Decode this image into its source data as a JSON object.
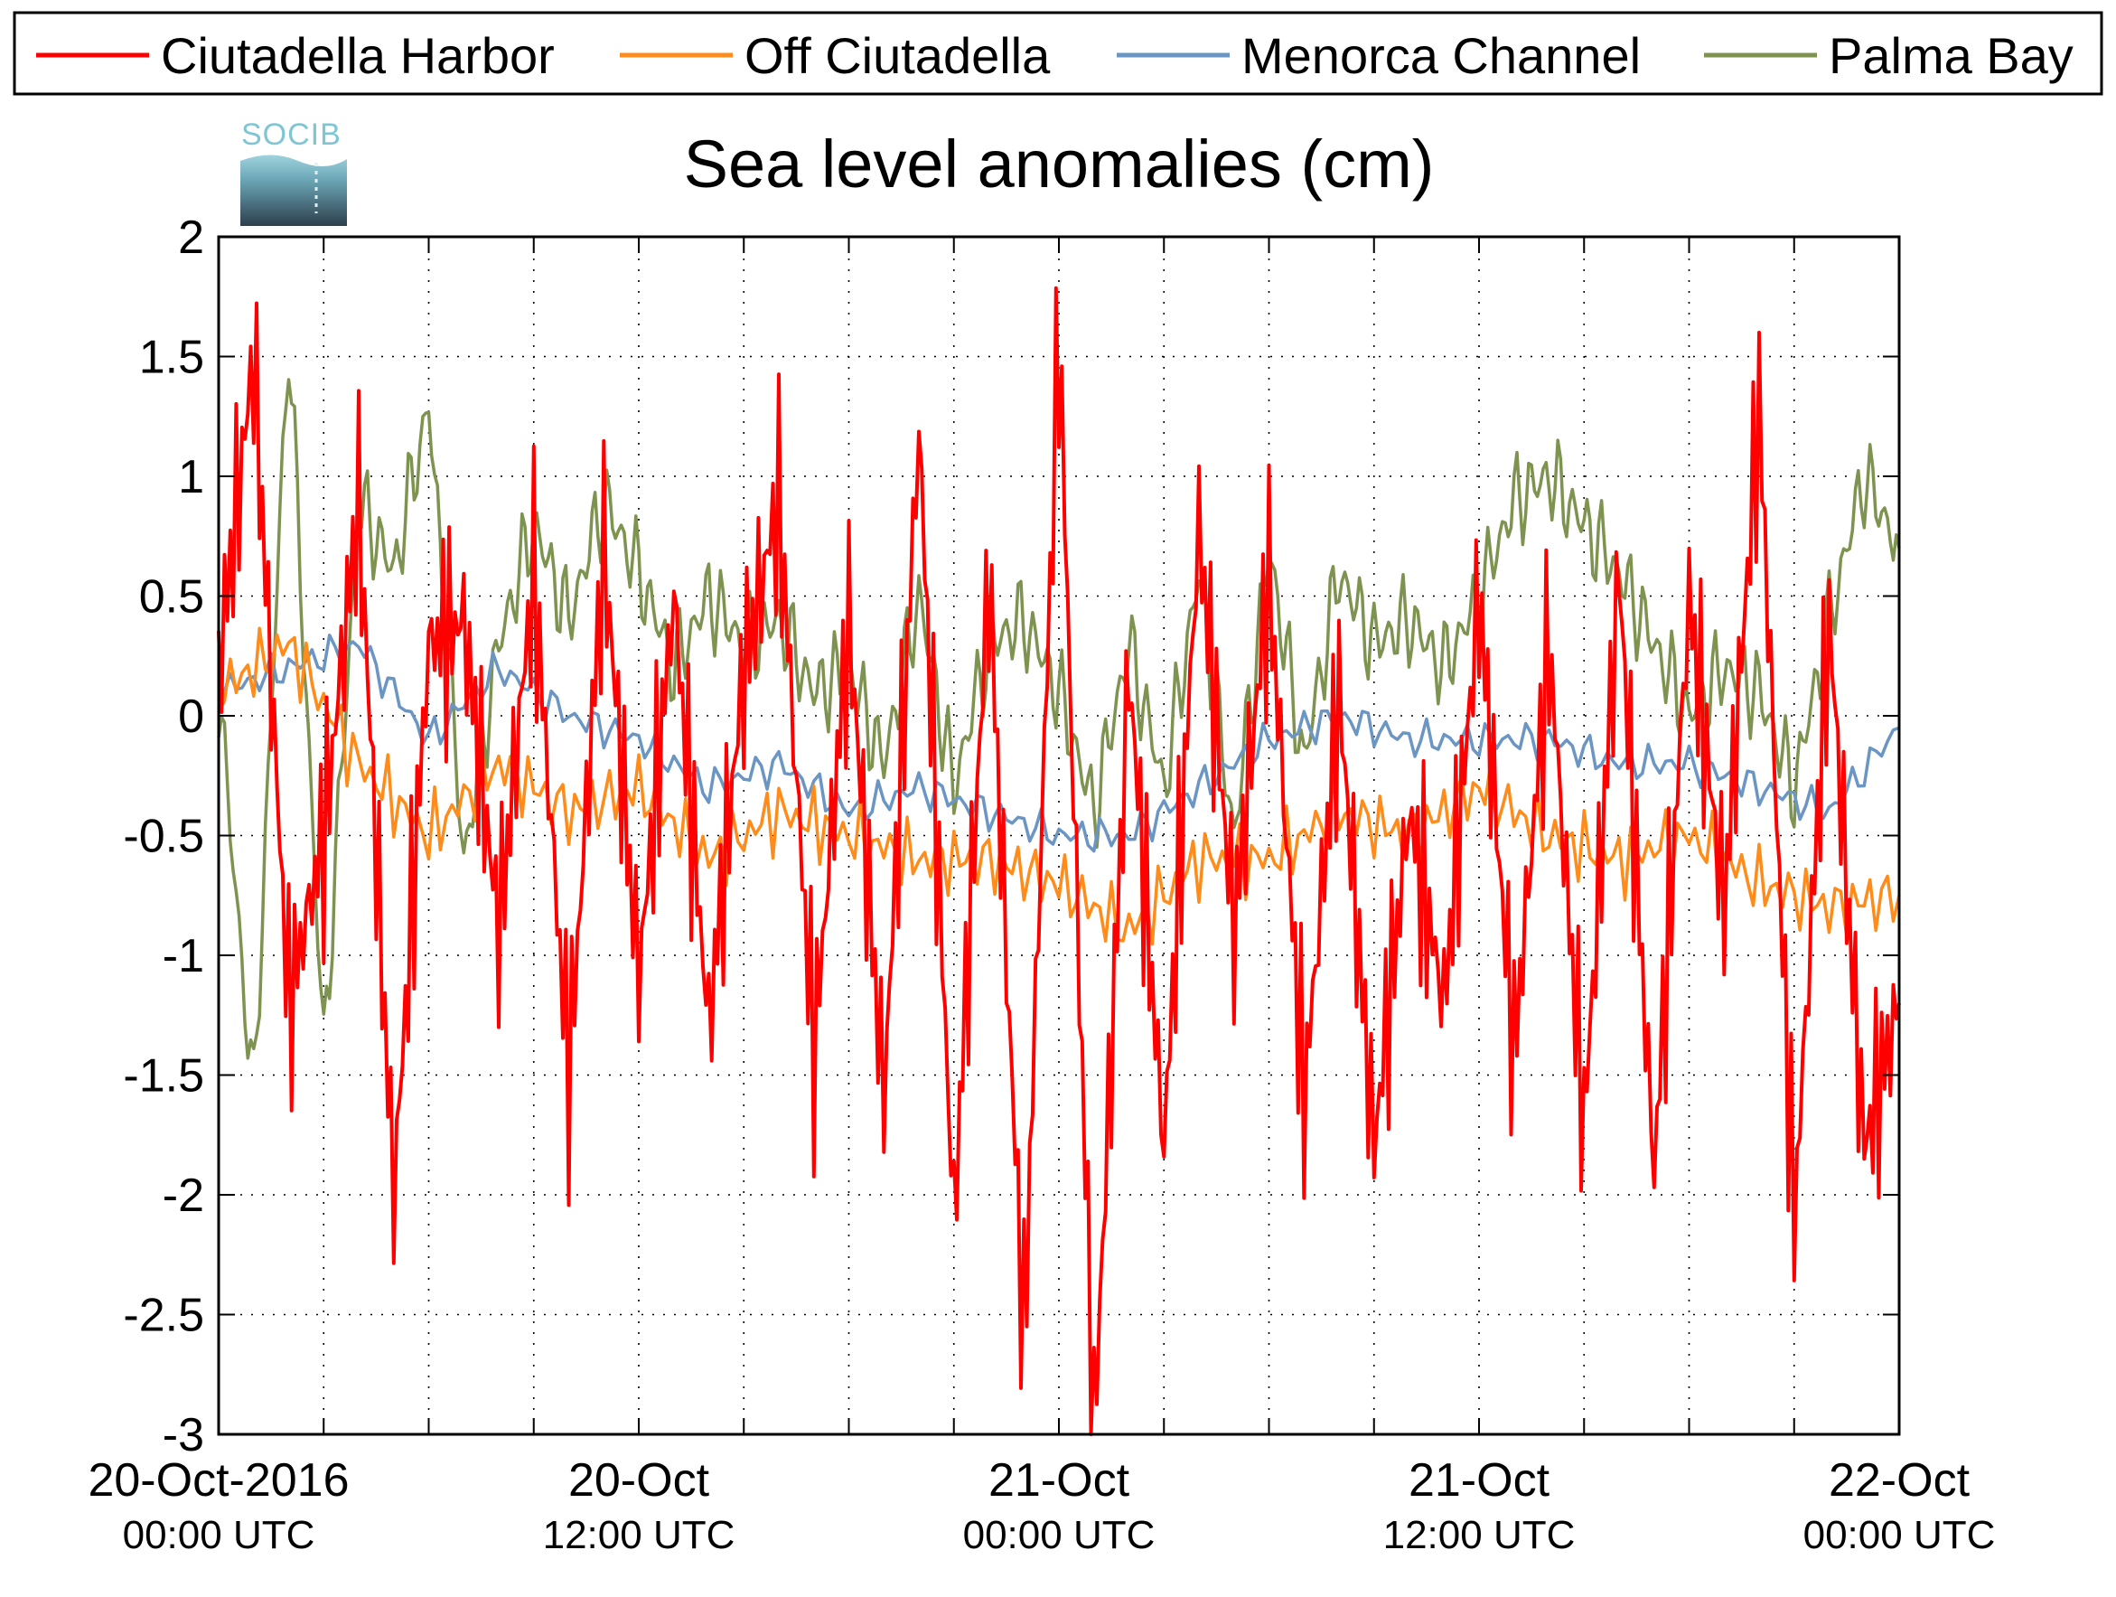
{
  "chart_data": {
    "type": "line",
    "title": "Sea level anomalies (cm)",
    "xlabel": "",
    "ylabel": "",
    "logo_text": "SOCIB",
    "ylim": [
      -3,
      2
    ],
    "yticks": [
      2,
      1.5,
      1,
      0.5,
      0,
      -0.5,
      -1,
      -1.5,
      -2,
      -2.5,
      -3
    ],
    "ytick_labels": [
      "2",
      "1.5",
      "1",
      "0.5",
      "0",
      "-0.5",
      "-1",
      "-1.5",
      "-2",
      "-2.5",
      "-3"
    ],
    "xlim": [
      "2016-10-20T00:00",
      "2016-10-22T00:00"
    ],
    "x_major_ticks": [
      {
        "date": "20-Oct-2016",
        "time": "00:00 UTC"
      },
      {
        "date": "20-Oct",
        "time": "12:00 UTC"
      },
      {
        "date": "21-Oct",
        "time": "00:00 UTC"
      },
      {
        "date": "21-Oct",
        "time": "12:00 UTC"
      },
      {
        "date": "22-Oct",
        "time": "00:00 UTC"
      }
    ],
    "grid": true,
    "legend_position": "top",
    "series": [
      {
        "name": "Ciutadella Harbor",
        "color": "#ff0000",
        "x_hours": [
          0,
          1,
          2,
          3,
          4,
          5,
          6,
          7,
          8,
          9,
          10,
          11,
          12,
          13,
          14,
          15,
          16,
          17,
          18,
          19,
          20,
          21,
          22,
          23,
          24,
          25,
          26,
          27,
          28,
          29,
          30,
          31,
          32,
          33,
          34,
          35,
          36,
          37,
          38,
          39,
          40,
          41,
          42,
          43,
          44,
          45,
          46,
          47,
          48
        ],
        "values": [
          0.2,
          1.5,
          -1.2,
          -0.5,
          0.9,
          -2.0,
          0.3,
          0.4,
          -0.9,
          0.6,
          -1.5,
          0.7,
          -1.1,
          0.5,
          -1.3,
          0.2,
          0.9,
          -1.4,
          0.4,
          -1.6,
          1.2,
          -2.1,
          0.6,
          -2.6,
          1.6,
          -3.0,
          0.2,
          -1.8,
          0.8,
          -0.9,
          0.6,
          -1.6,
          0.1,
          -1.8,
          -0.4,
          -1.2,
          0.5,
          -1.4,
          0.3,
          -1.7,
          0.6,
          -1.9,
          0.5,
          -0.8,
          1.3,
          -2.1,
          0.4,
          -1.8,
          -1.2
        ],
        "envelope_note": "rapid seiche oscillations between about -2 and 1.5 cm"
      },
      {
        "name": "Off Ciutadella",
        "color": "#ff8c1a",
        "x_hours": [
          0,
          2,
          4,
          6,
          8,
          10,
          12,
          14,
          16,
          18,
          20,
          22,
          24,
          26,
          28,
          30,
          32,
          34,
          36,
          38,
          40,
          42,
          44,
          46,
          48
        ],
        "values": [
          0.1,
          0.3,
          -0.2,
          -0.5,
          -0.2,
          -0.4,
          -0.3,
          -0.6,
          -0.4,
          -0.5,
          -0.6,
          -0.6,
          -0.7,
          -0.9,
          -0.6,
          -0.6,
          -0.4,
          -0.5,
          -0.3,
          -0.5,
          -0.6,
          -0.5,
          -0.7,
          -0.8,
          -0.75
        ]
      },
      {
        "name": "Menorca Channel",
        "color": "#6b96c4",
        "x_hours": [
          0,
          2,
          4,
          6,
          8,
          10,
          12,
          14,
          16,
          18,
          20,
          22,
          24,
          26,
          28,
          30,
          32,
          34,
          36,
          38,
          40,
          42,
          44,
          46,
          48
        ],
        "values": [
          0.1,
          0.2,
          0.3,
          -0.1,
          0.2,
          0.0,
          -0.1,
          -0.3,
          -0.2,
          -0.4,
          -0.3,
          -0.4,
          -0.5,
          -0.5,
          -0.3,
          -0.1,
          0.0,
          -0.1,
          -0.1,
          -0.1,
          -0.2,
          -0.2,
          -0.3,
          -0.4,
          -0.05
        ]
      },
      {
        "name": "Palma Bay",
        "color": "#7e9350",
        "x_hours": [
          0,
          1,
          2,
          3,
          4,
          5,
          6,
          7,
          8,
          9,
          10,
          11,
          12,
          13,
          14,
          15,
          16,
          17,
          18,
          19,
          20,
          21,
          22,
          23,
          24,
          25,
          26,
          27,
          28,
          29,
          30,
          31,
          32,
          33,
          34,
          35,
          36,
          37,
          38,
          39,
          40,
          41,
          42,
          43,
          44,
          45,
          46,
          47,
          48
        ],
        "values": [
          0.1,
          -1.6,
          1.6,
          -1.4,
          0.9,
          0.6,
          1.3,
          -0.6,
          0.3,
          0.8,
          0.4,
          0.9,
          0.6,
          0.2,
          0.5,
          0.3,
          0.4,
          0.1,
          0.2,
          -0.2,
          0.5,
          -0.3,
          0.3,
          0.4,
          0.1,
          -0.4,
          0.3,
          -0.3,
          0.6,
          -0.5,
          0.7,
          -0.2,
          0.6,
          0.3,
          0.4,
          0.2,
          0.5,
          0.9,
          1.0,
          0.8,
          0.6,
          0.3,
          0.0,
          0.2,
          0.1,
          -0.3,
          0.4,
          1.0,
          0.7
        ]
      }
    ]
  }
}
